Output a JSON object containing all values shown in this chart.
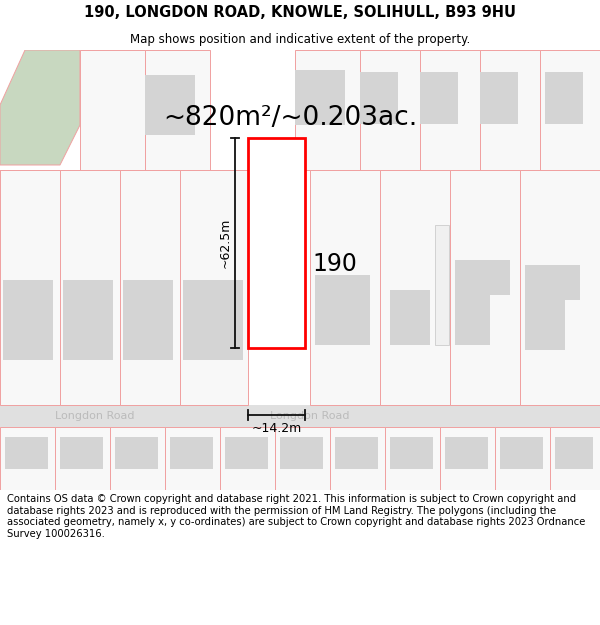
{
  "title": "190, LONGDON ROAD, KNOWLE, SOLIHULL, B93 9HU",
  "subtitle": "Map shows position and indicative extent of the property.",
  "area_text": "~820m²/~0.203ac.",
  "dim_height": "~62.5m",
  "dim_width": "~14.2m",
  "property_number": "190",
  "road_name": "Longdon Road",
  "footer": "Contains OS data © Crown copyright and database right 2021. This information is subject to Crown copyright and database rights 2023 and is reproduced with the permission of HM Land Registry. The polygons (including the associated geometry, namely x, y co-ordinates) are subject to Crown copyright and database rights 2023 Ordnance Survey 100026316.",
  "bg_color": "#ffffff",
  "map_bg": "#ffffff",
  "building_color": "#d4d4d4",
  "plot_outline_color": "#ff0000",
  "boundary_line_color": "#f0a0a0",
  "dim_line_color": "#111111",
  "green_area_color": "#c8d8c0",
  "title_fontsize": 10.5,
  "subtitle_fontsize": 8.5,
  "area_fontsize": 19,
  "footer_fontsize": 7.2
}
